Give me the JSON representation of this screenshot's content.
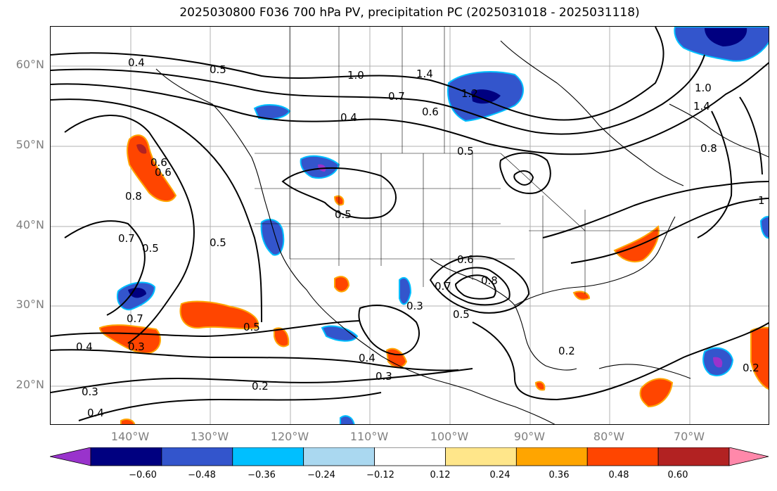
{
  "title": "2025030800 F036 700 hPa PV, precipitation PC (2025031018 - 2025031118)",
  "lat_labels": [
    "60°N",
    "50°N",
    "40°N",
    "30°N",
    "20°N"
  ],
  "lon_labels": [
    "140°W",
    "130°W",
    "120°W",
    "110°W",
    "100°W",
    "90°W",
    "80°W",
    "70°W"
  ],
  "contour_labels": [
    "0.4",
    "0.5",
    "1.0",
    "1.4",
    "1.2",
    "0.7",
    "0.6",
    "0.4",
    "0.5",
    "1.0",
    "1.4",
    "0.8",
    "0.6",
    "0.8",
    "0.7",
    "0.5",
    "0.5",
    "0.5",
    "0.6",
    "0.8",
    "0.7",
    "0.5",
    "0.4",
    "0.3",
    "0.7",
    "0.5",
    "0.4",
    "0.3",
    "0.2",
    "0.2",
    "0.2",
    "0.3",
    "0.4",
    "0.3",
    "0.6",
    "1"
  ],
  "colorbar": {
    "colors": [
      "#9933cc",
      "#000080",
      "#3355cc",
      "#00bfff",
      "#aad8f0",
      "#ffffff",
      "#ffe68a",
      "#ffa500",
      "#ff4500",
      "#b22222",
      "#ff88aa"
    ],
    "tick_labels": [
      "−0.60",
      "−0.48",
      "−0.36",
      "−0.24",
      "−0.12",
      "0.12",
      "0.24",
      "0.36",
      "0.48",
      "0.60"
    ]
  },
  "chart_data": {
    "type": "contour_map",
    "title": "2025030800 F036 700 hPa PV, precipitation PC (2025031018 - 2025031118)",
    "region": "North America / Eastern Pacific",
    "lon_range": [
      -150,
      -60
    ],
    "lat_range": [
      15,
      65
    ],
    "grid": true,
    "contour_field": "700 hPa PV",
    "fill_field": "precipitation PC",
    "fill_levels": [
      -0.6,
      -0.48,
      -0.36,
      -0.24,
      -0.12,
      0.12,
      0.24,
      0.36,
      0.48,
      0.6
    ],
    "contour_labels": [
      0.2,
      0.3,
      0.4,
      0.5,
      0.6,
      0.7,
      0.8,
      1.0,
      1.2,
      1.4
    ]
  }
}
